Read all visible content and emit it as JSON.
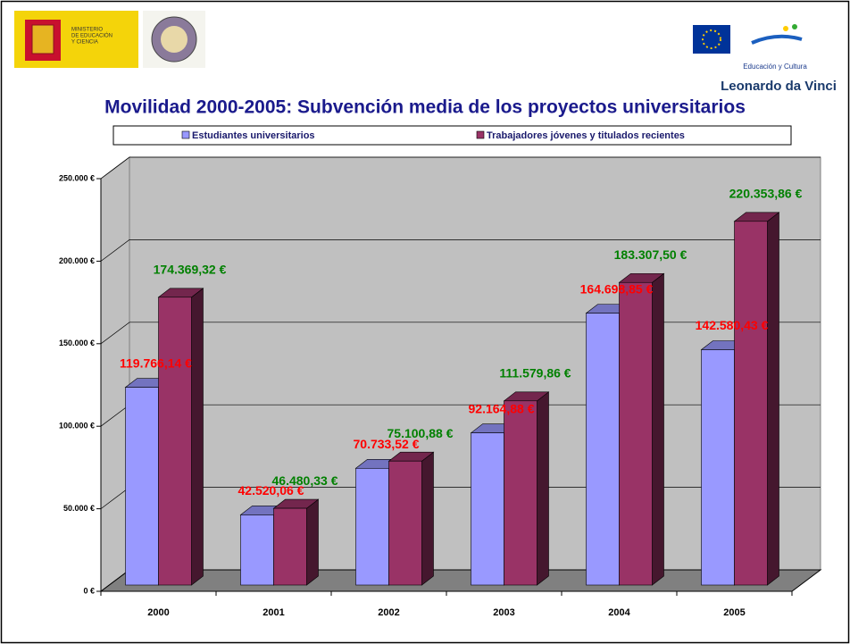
{
  "logos": {
    "ministry": [
      "MINISTERIO",
      "DE EDUCACIÓN",
      "Y CIENCIA"
    ],
    "eu": "Educación y Cultura",
    "programme": "Leonardo da Vinci"
  },
  "chart_data": {
    "type": "bar3d",
    "title": "Movilidad 2000-2005: Subvención media  de los proyectos universitarios",
    "categories": [
      "2000",
      "2001",
      "2002",
      "2003",
      "2004",
      "2005"
    ],
    "series": [
      {
        "name": "Estudiantes universitarios",
        "color": "#9999ff",
        "label_color": "#ff0000",
        "values": [
          119766.14,
          42520.06,
          70733.52,
          92164.88,
          164698.85,
          142580.43
        ],
        "value_labels": [
          "119.766,14 €",
          "42.520,06 €",
          "70.733,52 €",
          "92.164,88 €",
          "164.698,85 €",
          "142.580,43 €"
        ]
      },
      {
        "name": "Trabajadores jóvenes y titulados recientes",
        "color": "#993366",
        "label_color": "#008000",
        "values": [
          174369.32,
          46480.33,
          75100.88,
          111579.86,
          183307.5,
          220353.86
        ],
        "value_labels": [
          "174.369,32 €",
          "46.480,33 €",
          "75.100,88 €",
          "111.579,86 €",
          "183.307,50 €",
          "220.353,86 €"
        ]
      }
    ],
    "ylim": [
      0,
      250000
    ],
    "yticks": [
      {
        "value": 0,
        "label": "0 €"
      },
      {
        "value": 50000,
        "label": "50.000 €"
      },
      {
        "value": 100000,
        "label": "100.000 €"
      },
      {
        "value": 150000,
        "label": "150.000 €"
      },
      {
        "value": 200000,
        "label": "200.000 €"
      },
      {
        "value": 250000,
        "label": "250.000 €"
      }
    ],
    "grid": true,
    "legend": "top"
  }
}
